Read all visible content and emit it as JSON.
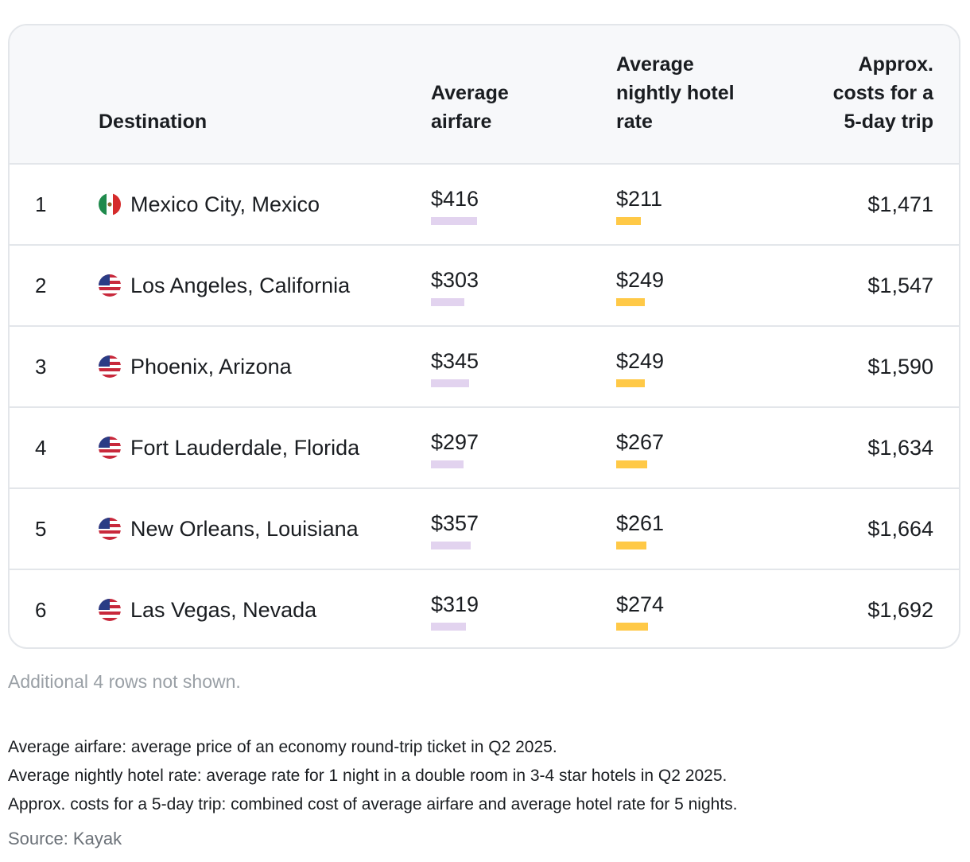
{
  "table": {
    "headers": {
      "destination": "Destination",
      "airfare": [
        "Average",
        "airfare"
      ],
      "hotel": [
        "Average",
        "nightly hotel",
        "rate"
      ],
      "cost": [
        "Approx.",
        "costs for a",
        "5-day trip"
      ]
    },
    "rows": [
      {
        "rank": "1",
        "flag": "mexico-flag-icon",
        "destination": "Mexico City, Mexico",
        "airfare": "$416",
        "airfare_value": 416,
        "hotel": "$211",
        "hotel_value": 211,
        "cost": "$1,471"
      },
      {
        "rank": "2",
        "flag": "usa-flag-icon",
        "destination": "Los Angeles, California",
        "airfare": "$303",
        "airfare_value": 303,
        "hotel": "$249",
        "hotel_value": 249,
        "cost": "$1,547"
      },
      {
        "rank": "3",
        "flag": "usa-flag-icon",
        "destination": "Phoenix, Arizona",
        "airfare": "$345",
        "airfare_value": 345,
        "hotel": "$249",
        "hotel_value": 249,
        "cost": "$1,590"
      },
      {
        "rank": "4",
        "flag": "usa-flag-icon",
        "destination": "Fort Lauderdale, Florida",
        "airfare": "$297",
        "airfare_value": 297,
        "hotel": "$267",
        "hotel_value": 267,
        "cost": "$1,634"
      },
      {
        "rank": "5",
        "flag": "usa-flag-icon",
        "destination": "New Orleans, Louisiana",
        "airfare": "$357",
        "airfare_value": 357,
        "hotel": "$261",
        "hotel_value": 261,
        "cost": "$1,664"
      },
      {
        "rank": "6",
        "flag": "usa-flag-icon",
        "destination": "Las Vegas, Nevada",
        "airfare": "$319",
        "airfare_value": 319,
        "hotel": "$274",
        "hotel_value": 274,
        "cost": "$1,692"
      }
    ]
  },
  "footer": {
    "rows_note": "Additional 4 rows not shown.",
    "notes": [
      "Average airfare: average price of an economy round-trip ticket in Q2 2025.",
      "Average nightly hotel rate: average rate for 1 night in a double room in 3-4 star hotels in Q2 2025.",
      "Approx. costs for a 5-day trip: combined cost of average airfare and average hotel rate for 5 nights."
    ],
    "source": "Source: Kayak"
  },
  "colors": {
    "airfare_bar": "#e2d3ef",
    "hotel_bar": "#ffc947",
    "header_bg": "#f7f8fa",
    "border": "#e3e6ea"
  }
}
